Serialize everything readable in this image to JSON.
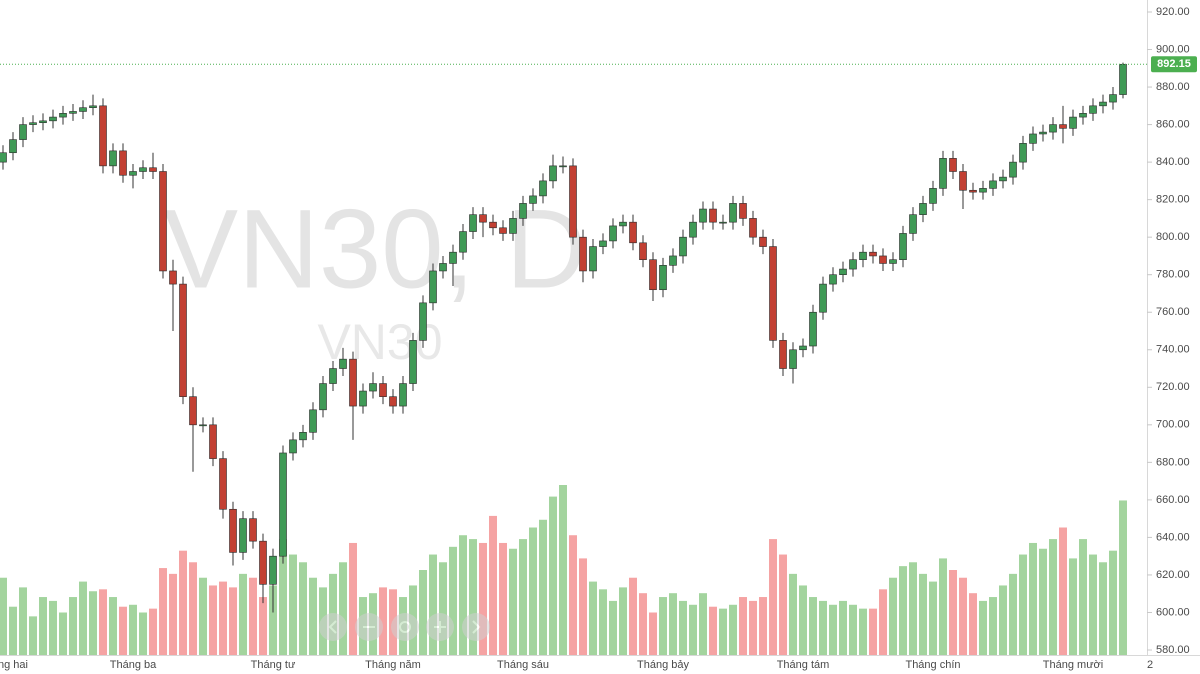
{
  "chart_data": {
    "type": "candlestick",
    "watermark": "VN30, D",
    "watermark_symbol": "VN30",
    "up_color": "#3f9a56",
    "down_color": "#c24033",
    "volume_up_color": "#a3d49e",
    "volume_down_color": "#f5a3a3",
    "categories": [
      null,
      "ng hai",
      null,
      null,
      null,
      null,
      null,
      null,
      null,
      null,
      null,
      null,
      null,
      "Tháng ba",
      null,
      null,
      null,
      null,
      null,
      null,
      null,
      null,
      null,
      null,
      null,
      null,
      null,
      "Tháng tư",
      null,
      null,
      null,
      null,
      null,
      null,
      null,
      null,
      null,
      null,
      null,
      "Tháng năm",
      null,
      null,
      null,
      null,
      null,
      null,
      null,
      null,
      null,
      null,
      null,
      null,
      "Tháng sáu",
      null,
      null,
      null,
      null,
      null,
      null,
      null,
      null,
      null,
      null,
      null,
      null,
      null,
      "Tháng bảy",
      null,
      null,
      null,
      null,
      null,
      null,
      null,
      null,
      null,
      null,
      null,
      null,
      null,
      "Tháng tám",
      null,
      null,
      null,
      null,
      null,
      null,
      null,
      null,
      null,
      null,
      null,
      null,
      "Tháng chín",
      null,
      null,
      null,
      null,
      null,
      null,
      null,
      null,
      null,
      null,
      null,
      null,
      null,
      "Tháng mười",
      null,
      null,
      null,
      null,
      null
    ],
    "x_axis_next_label": "2",
    "open": [
      840,
      845,
      852,
      860,
      861,
      862,
      864,
      866,
      867,
      869,
      870,
      838,
      846,
      833,
      835,
      837,
      835,
      782,
      775,
      715,
      700,
      700,
      682,
      655,
      632,
      650,
      638,
      615,
      630,
      685,
      692,
      696,
      708,
      722,
      730,
      735,
      710,
      718,
      722,
      715,
      710,
      722,
      745,
      765,
      782,
      786,
      792,
      803,
      812,
      808,
      805,
      802,
      810,
      818,
      822,
      830,
      838,
      838,
      800,
      782,
      795,
      798,
      806,
      808,
      797,
      788,
      772,
      785,
      790,
      800,
      808,
      815,
      808,
      808,
      818,
      810,
      800,
      795,
      745,
      730,
      740,
      742,
      760,
      775,
      780,
      783,
      788,
      792,
      790,
      786,
      788,
      802,
      812,
      818,
      826,
      842,
      835,
      825,
      824,
      826,
      830,
      832,
      840,
      850,
      855,
      856,
      860,
      858,
      864,
      866,
      870,
      872,
      876
    ],
    "high": [
      849,
      856,
      864,
      865,
      866,
      868,
      870,
      871,
      873,
      876,
      874,
      850,
      850,
      839,
      841,
      845,
      839,
      788,
      779,
      720,
      704,
      704,
      686,
      659,
      654,
      654,
      642,
      634,
      689,
      696,
      700,
      712,
      726,
      734,
      741,
      739,
      722,
      728,
      726,
      719,
      726,
      749,
      769,
      786,
      790,
      796,
      807,
      816,
      816,
      812,
      809,
      814,
      822,
      826,
      834,
      844,
      843,
      842,
      804,
      799,
      802,
      810,
      812,
      812,
      801,
      792,
      789,
      794,
      804,
      812,
      819,
      819,
      812,
      822,
      822,
      814,
      804,
      799,
      749,
      744,
      746,
      764,
      779,
      784,
      787,
      792,
      796,
      796,
      794,
      792,
      806,
      816,
      822,
      830,
      846,
      846,
      839,
      829,
      830,
      834,
      836,
      844,
      854,
      859,
      860,
      864,
      870,
      868,
      870,
      874,
      876,
      880,
      893
    ],
    "low": [
      836,
      841,
      848,
      856,
      857,
      858,
      860,
      862,
      863,
      865,
      834,
      834,
      829,
      826,
      831,
      831,
      778,
      750,
      711,
      675,
      696,
      678,
      650,
      625,
      628,
      634,
      605,
      600,
      626,
      681,
      688,
      692,
      704,
      718,
      726,
      692,
      706,
      714,
      711,
      706,
      706,
      718,
      741,
      761,
      778,
      774,
      788,
      799,
      800,
      801,
      798,
      798,
      806,
      814,
      818,
      826,
      834,
      796,
      776,
      778,
      791,
      794,
      802,
      793,
      784,
      766,
      768,
      781,
      786,
      796,
      804,
      804,
      804,
      804,
      806,
      796,
      791,
      741,
      726,
      722,
      736,
      738,
      756,
      771,
      776,
      779,
      784,
      786,
      782,
      782,
      784,
      798,
      808,
      814,
      822,
      831,
      815,
      820,
      820,
      822,
      826,
      828,
      836,
      846,
      851,
      852,
      850,
      854,
      860,
      862,
      866,
      868,
      874
    ],
    "close": [
      845,
      852,
      860,
      861,
      862,
      864,
      866,
      867,
      869,
      870,
      838,
      846,
      833,
      835,
      837,
      835,
      782,
      775,
      715,
      700,
      700,
      682,
      655,
      632,
      650,
      638,
      615,
      630,
      685,
      692,
      696,
      708,
      722,
      730,
      735,
      710,
      718,
      722,
      715,
      710,
      722,
      745,
      765,
      782,
      786,
      792,
      803,
      812,
      808,
      805,
      802,
      810,
      818,
      822,
      830,
      838,
      838,
      800,
      782,
      795,
      798,
      806,
      808,
      797,
      788,
      772,
      785,
      790,
      800,
      808,
      815,
      808,
      808,
      818,
      810,
      800,
      795,
      745,
      730,
      740,
      742,
      760,
      775,
      780,
      783,
      788,
      792,
      790,
      786,
      788,
      802,
      812,
      818,
      826,
      842,
      835,
      825,
      824,
      826,
      830,
      832,
      840,
      850,
      855,
      856,
      860,
      858,
      864,
      866,
      870,
      872,
      876,
      892.15
    ],
    "volume": [
      40,
      25,
      35,
      20,
      30,
      28,
      22,
      30,
      38,
      33,
      34,
      30,
      25,
      26,
      22,
      24,
      45,
      42,
      54,
      48,
      40,
      36,
      38,
      35,
      42,
      40,
      30,
      36,
      60,
      52,
      48,
      40,
      35,
      42,
      48,
      58,
      30,
      32,
      35,
      34,
      30,
      36,
      44,
      52,
      48,
      56,
      62,
      60,
      58,
      72,
      58,
      55,
      60,
      66,
      70,
      82,
      88,
      62,
      50,
      38,
      34,
      28,
      35,
      40,
      32,
      22,
      30,
      32,
      28,
      26,
      32,
      25,
      24,
      26,
      30,
      28,
      30,
      60,
      52,
      42,
      36,
      30,
      28,
      26,
      28,
      26,
      24,
      24,
      34,
      40,
      46,
      48,
      42,
      38,
      50,
      44,
      40,
      32,
      28,
      30,
      36,
      42,
      52,
      58,
      55,
      60,
      66,
      50,
      60,
      52,
      48,
      54,
      80
    ],
    "ylim": [
      580,
      920
    ],
    "yticks": [
      {
        "value": 580,
        "label": "580.00"
      },
      {
        "value": 600,
        "label": "600.00"
      },
      {
        "value": 620,
        "label": "620.00"
      },
      {
        "value": 640,
        "label": "640.00"
      },
      {
        "value": 660,
        "label": "660.00"
      },
      {
        "value": 680,
        "label": "680.00"
      },
      {
        "value": 700,
        "label": "700.00"
      },
      {
        "value": 720,
        "label": "720.00"
      },
      {
        "value": 740,
        "label": "740.00"
      },
      {
        "value": 760,
        "label": "760.00"
      },
      {
        "value": 780,
        "label": "780.00"
      },
      {
        "value": 800,
        "label": "800.00"
      },
      {
        "value": 820,
        "label": "820.00"
      },
      {
        "value": 840,
        "label": "840.00"
      },
      {
        "value": 860,
        "label": "860.00"
      },
      {
        "value": 880,
        "label": "880.00"
      },
      {
        "value": 900,
        "label": "900.00"
      },
      {
        "value": 920,
        "label": "920.00"
      }
    ],
    "last_price": {
      "value": 892.15,
      "label": "892.15"
    },
    "last_price_color": "#4caf50"
  }
}
